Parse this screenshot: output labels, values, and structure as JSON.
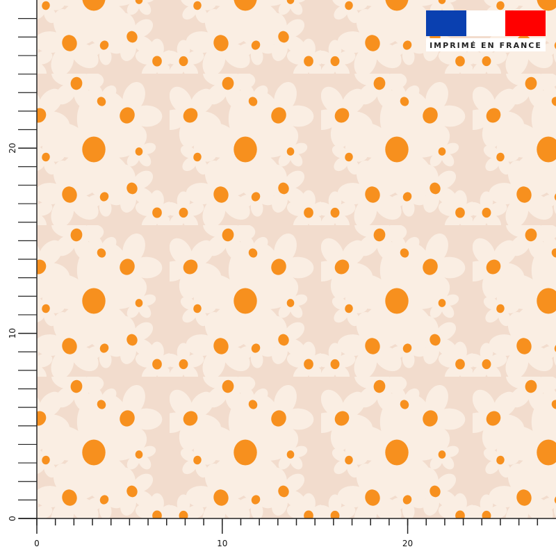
{
  "ruler": {
    "xlim": [
      0,
      28
    ],
    "ylim": [
      0,
      28
    ],
    "xticks": [
      0,
      10,
      20
    ],
    "yticks": [
      0,
      10,
      20
    ]
  },
  "badge": {
    "text": "IMPRIMÉ EN FRANCE"
  }
}
